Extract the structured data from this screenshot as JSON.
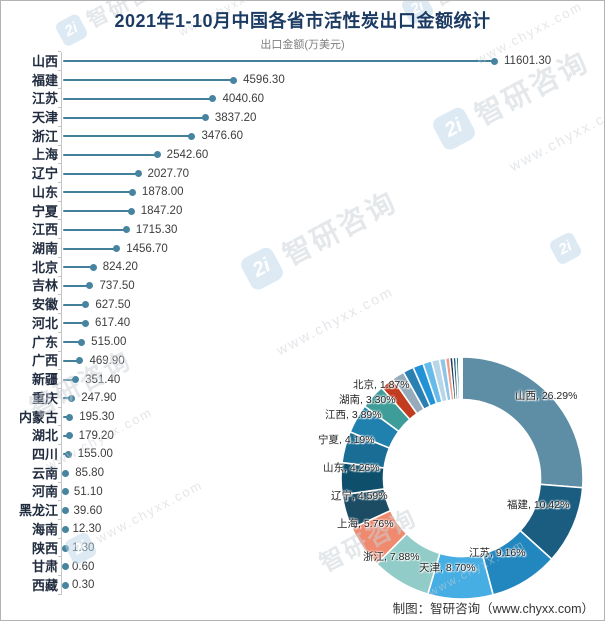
{
  "title": "2021年1-10月中国各省市活性炭出口金额统计",
  "subtitle": "出口金额(万美元)",
  "caption": "制图：智研咨询（www.chyxx.com）",
  "watermark": {
    "logo_text": "2i",
    "brand": "智研咨询",
    "url": "www.chyxx.com"
  },
  "colors": {
    "bar_line": "#417f9a",
    "bar_dot": "#47849f",
    "axis": "#c4c4c4",
    "title_text": "#1c3b63",
    "subtitle_text": "#7f7f7f",
    "category_text": "#212c3f",
    "value_text": "#3d3d3d",
    "donut_label_text": "#262626",
    "caption_text": "#333333"
  },
  "chart_data": [
    {
      "type": "bar",
      "orientation": "horizontal",
      "title": "2021年1-10月中国各省市活性炭出口金额统计",
      "value_axis_label": "出口金额(万美元)",
      "value_format": "two-decimals",
      "xlim": [
        0,
        11601.3
      ],
      "grid": false,
      "categories": [
        "山西",
        "福建",
        "江苏",
        "天津",
        "浙江",
        "上海",
        "辽宁",
        "山东",
        "宁夏",
        "江西",
        "湖南",
        "北京",
        "吉林",
        "安徽",
        "河北",
        "广东",
        "广西",
        "新疆",
        "重庆",
        "内蒙古",
        "湖北",
        "四川",
        "云南",
        "河南",
        "黑龙江",
        "海南",
        "陕西",
        "甘肃",
        "西藏"
      ],
      "values": [
        11601.3,
        4596.3,
        4040.6,
        3837.2,
        3476.6,
        2542.6,
        2027.7,
        1878.0,
        1847.2,
        1715.3,
        1456.7,
        824.2,
        737.5,
        627.5,
        617.4,
        515.0,
        469.9,
        351.4,
        247.9,
        195.3,
        179.2,
        155.0,
        85.8,
        51.1,
        39.6,
        12.3,
        1.3,
        0.6,
        0.3
      ]
    },
    {
      "type": "pie",
      "subtype": "donut",
      "start_angle_deg": 0,
      "direction": "clockwise",
      "slices": [
        {
          "name": "山西",
          "pct": 26.29,
          "color": "#5e8ea6"
        },
        {
          "name": "福建",
          "pct": 10.42,
          "color": "#1a5d80"
        },
        {
          "name": "江苏",
          "pct": 9.16,
          "color": "#2287bf"
        },
        {
          "name": "天津",
          "pct": 8.7,
          "color": "#47aee4"
        },
        {
          "name": "浙江",
          "pct": 7.88,
          "color": "#92ccc8"
        },
        {
          "name": "上海",
          "pct": 5.76,
          "color": "#ef8a6f"
        },
        {
          "name": "辽宁",
          "pct": 4.59,
          "color": "#1c4c63"
        },
        {
          "name": "山东",
          "pct": 4.26,
          "color": "#0e506c"
        },
        {
          "name": "宁夏",
          "pct": 4.19,
          "color": "#1a6d94"
        },
        {
          "name": "江西",
          "pct": 3.89,
          "color": "#2080ae"
        },
        {
          "name": "湖南",
          "pct": 3.3,
          "color": "#3e9d99"
        },
        {
          "name": "北京",
          "pct": 1.87,
          "color": "#c23c20"
        },
        {
          "name": "吉林",
          "pct": 1.67,
          "color": "#95aaba"
        },
        {
          "name": "安徽",
          "pct": 1.42,
          "color": "#2b80b2"
        },
        {
          "name": "河北",
          "pct": 1.4,
          "color": "#2092d5"
        },
        {
          "name": "广东",
          "pct": 1.17,
          "color": "#66bbe9"
        },
        {
          "name": "广西",
          "pct": 1.06,
          "color": "#b8d6e7"
        },
        {
          "name": "新疆",
          "pct": 0.8,
          "color": "#8ec6ea"
        },
        {
          "name": "重庆",
          "pct": 0.56,
          "color": "#f09b84"
        },
        {
          "name": "内蒙古",
          "pct": 0.44,
          "color": "#1d3e5c"
        },
        {
          "name": "湖北",
          "pct": 0.41,
          "color": "#27607e"
        },
        {
          "name": "四川",
          "pct": 0.35,
          "color": "#13807e"
        },
        {
          "name": "云南",
          "pct": 0.19,
          "color": "#79d2e0"
        },
        {
          "name": "河南",
          "pct": 0.12,
          "color": "#aadce8"
        },
        {
          "name": "黑龙江",
          "pct": 0.09,
          "color": "#34536c"
        },
        {
          "name": "海南",
          "pct": 0.03,
          "color": "#c6e3ef"
        },
        {
          "name": "陕西",
          "pct": 0.003,
          "color": "#9fb6c4"
        },
        {
          "name": "甘肃",
          "pct": 0.0014,
          "color": "#b9cdd9"
        },
        {
          "name": "西藏",
          "pct": 0.0007,
          "color": "#d3e2ea"
        }
      ],
      "visible_labels": [
        "山西, 26.29%",
        "福建, 10.42%",
        "江苏, 9.16%",
        "天津, 8.70%",
        "浙江, 7.88%",
        "上海, 5.76%",
        "辽宁, 4.59%",
        "山东, 4.26%",
        "宁夏, 4.19%",
        "江西, 3.89%",
        "湖南, 3.30%",
        "北京, 1.87%"
      ]
    }
  ]
}
